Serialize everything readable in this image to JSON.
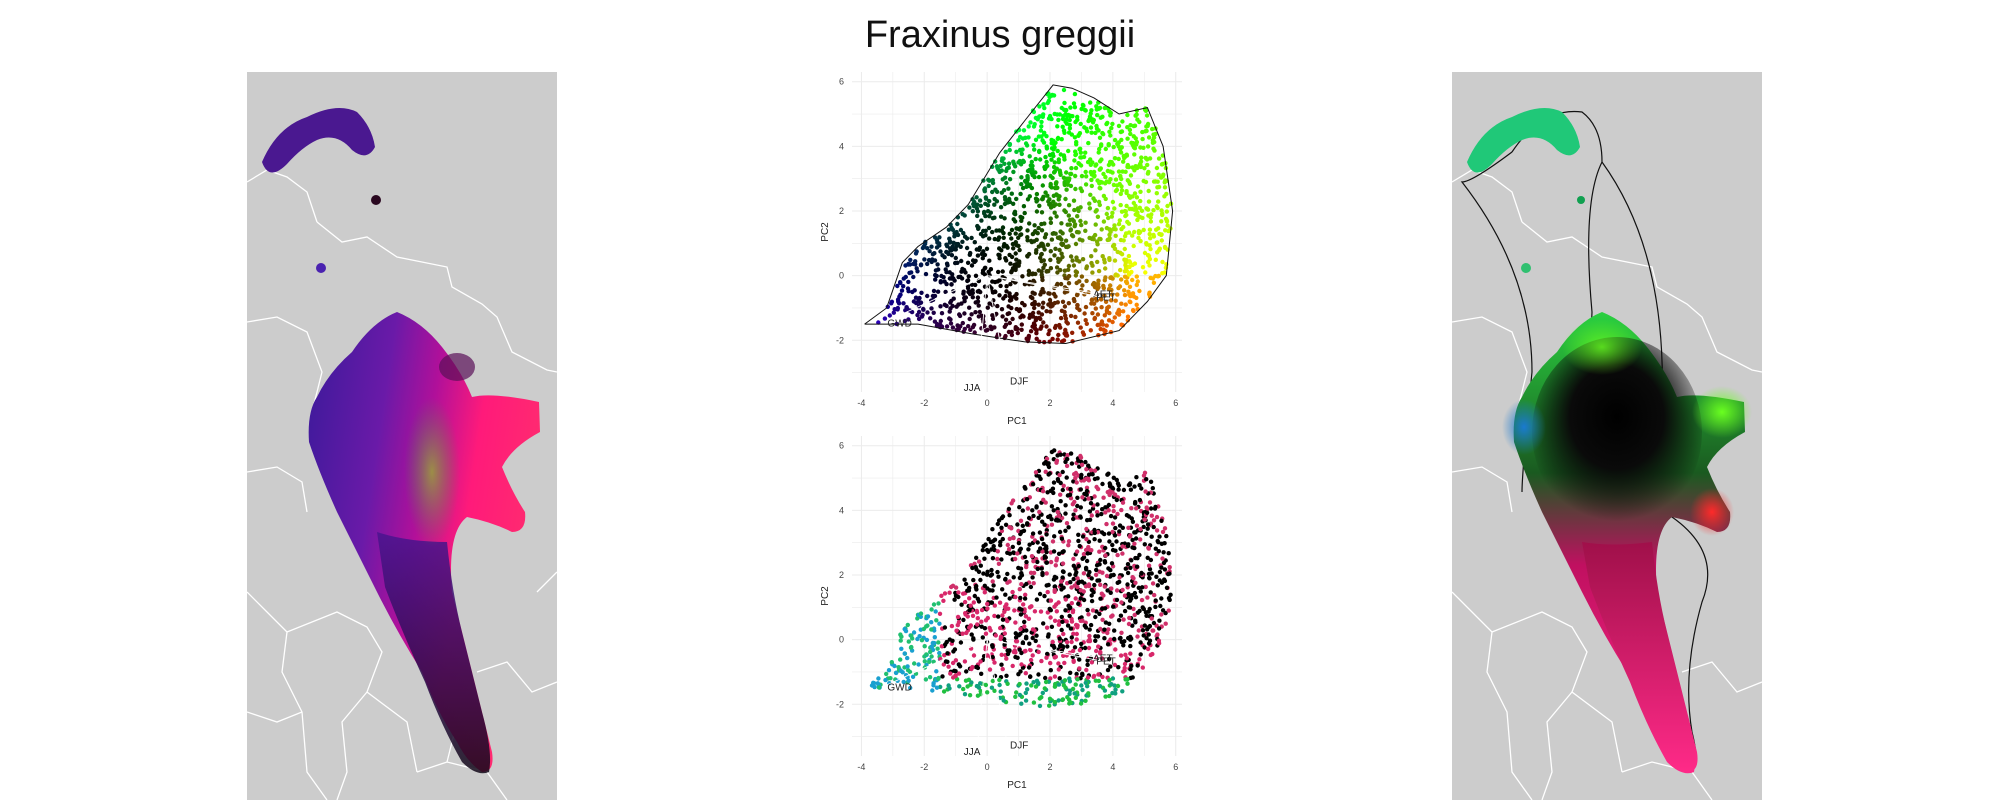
{
  "figure_title": "Fraxinus greggii",
  "chart_data": [
    {
      "type": "scatter",
      "panel": "biplot-top",
      "xlabel": "PC1",
      "ylabel": "PC2",
      "xlim": [
        -4.3,
        6.2
      ],
      "ylim": [
        -3.6,
        6.3
      ],
      "xticks": [
        -4,
        -2,
        0,
        2,
        4,
        6
      ],
      "yticks": [
        -2,
        0,
        2,
        4,
        6
      ],
      "grid": true,
      "points_coloring": "color wheel by PC direction, black near origin",
      "hull": [
        [
          -3.9,
          -1.5
        ],
        [
          -3.2,
          -1.0
        ],
        [
          -2.7,
          0.4
        ],
        [
          -2.2,
          0.9
        ],
        [
          -1.3,
          1.5
        ],
        [
          -0.6,
          2.2
        ],
        [
          0.4,
          3.8
        ],
        [
          1.2,
          4.8
        ],
        [
          2.1,
          5.9
        ],
        [
          2.7,
          5.8
        ],
        [
          3.4,
          5.5
        ],
        [
          4.2,
          5.0
        ],
        [
          5.1,
          5.2
        ],
        [
          5.6,
          4.0
        ],
        [
          5.9,
          2.0
        ],
        [
          5.7,
          0.0
        ],
        [
          5.1,
          -0.8
        ],
        [
          4.2,
          -1.7
        ],
        [
          2.5,
          -2.1
        ],
        [
          1.2,
          -2.05
        ],
        [
          -0.5,
          -1.8
        ],
        [
          -2.2,
          -1.5
        ],
        [
          -3.9,
          -1.5
        ]
      ],
      "vectors": [
        {
          "label": "GWD",
          "x": -3.3,
          "y": -1.45
        },
        {
          "label": "JJA",
          "x": -0.3,
          "y": -3.2
        },
        {
          "label": "DJF",
          "x": 0.6,
          "y": -3.0
        },
        {
          "label": "AET",
          "x": 3.5,
          "y": -0.55
        },
        {
          "label": "PET",
          "x": 3.6,
          "y": -0.65
        }
      ]
    },
    {
      "type": "scatter",
      "panel": "biplot-bottom",
      "xlabel": "PC1",
      "ylabel": "PC2",
      "xlim": [
        -4.3,
        6.2
      ],
      "ylim": [
        -3.6,
        6.3
      ],
      "xticks": [
        -4,
        -2,
        0,
        2,
        4,
        6
      ],
      "yticks": [
        -2,
        0,
        2,
        4,
        6
      ],
      "grid": true,
      "points_coloring": "mapped colors; black points mostly upper region, pink central, green/blue lower-left",
      "vectors": [
        {
          "label": "GWD",
          "x": -3.3,
          "y": -1.45
        },
        {
          "label": "JJA",
          "x": -0.3,
          "y": -3.2
        },
        {
          "label": "DJF",
          "x": 0.6,
          "y": -3.0
        },
        {
          "label": "AET",
          "x": 3.5,
          "y": -0.55
        },
        {
          "label": "PET",
          "x": 3.6,
          "y": -0.65
        }
      ]
    }
  ],
  "colors": {
    "map_background": "#cccccc",
    "border_lines": "#ffffff",
    "hull_line": "#111111"
  }
}
